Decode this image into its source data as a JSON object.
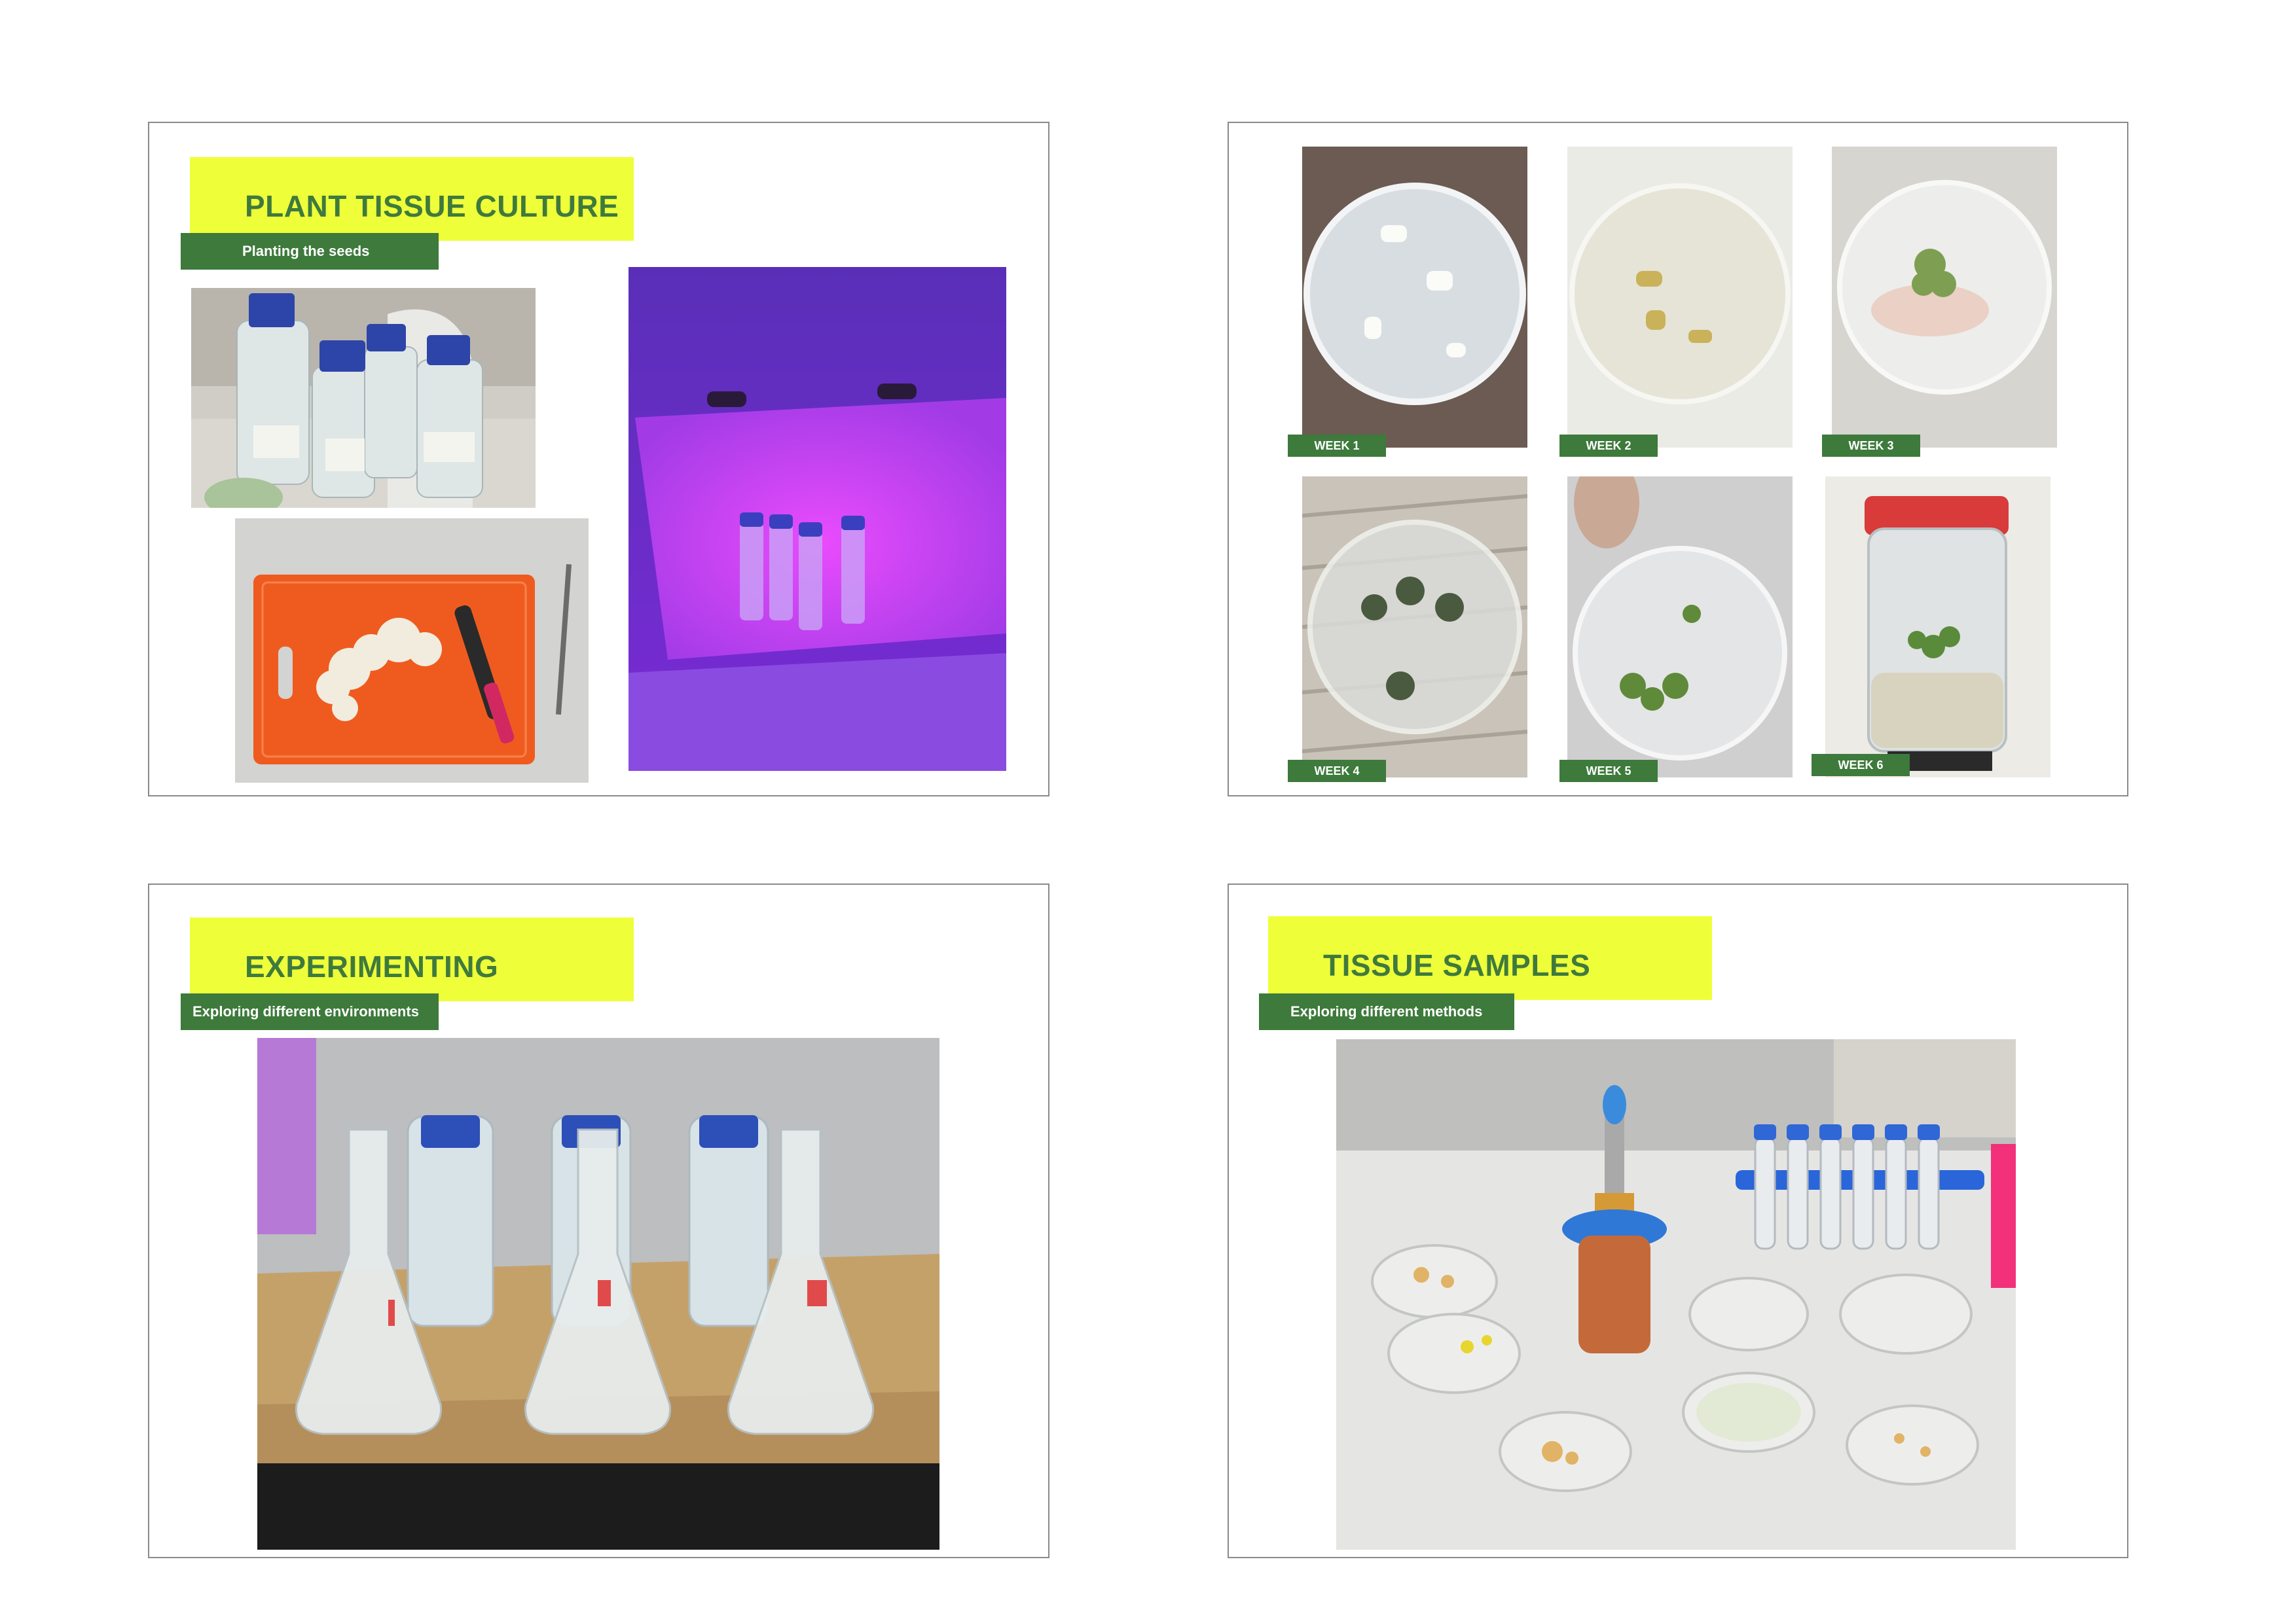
{
  "slides": [
    {
      "title": "PLANT TISSUE CULTURE",
      "subtitle": "Planting the seeds",
      "photos": [
        "bottles-photo",
        "cutting-board-photo",
        "uv-box-photo"
      ]
    },
    {
      "weeks": [
        "WEEK 1",
        "WEEK 2",
        "WEEK 3",
        "WEEK 4",
        "WEEK 5",
        "WEEK 6"
      ]
    },
    {
      "title": "EXPERIMENTING",
      "subtitle": "Exploring different environments"
    },
    {
      "title": "TISSUE SAMPLES",
      "subtitle": "Exploring different methods"
    }
  ],
  "colors": {
    "title_bg": "#eeff3a",
    "title_text": "#3f7a3d",
    "label_bg": "#3d7a3b",
    "label_text": "#ffffff"
  }
}
